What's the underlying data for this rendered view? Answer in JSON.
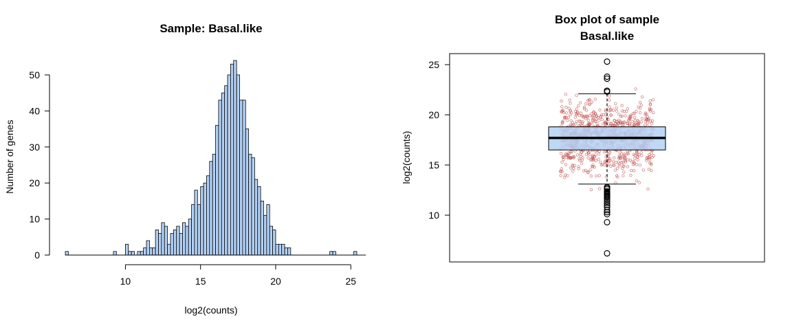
{
  "chart_data": [
    {
      "type": "bar",
      "title": "Sample:  Basal.like",
      "xlabel": "log2(counts)",
      "ylabel": "Number of genes",
      "xlim": [
        6,
        25.4
      ],
      "ylim": [
        0,
        54
      ],
      "x_ticks": [
        10,
        15,
        20,
        25
      ],
      "y_ticks": [
        0,
        10,
        20,
        30,
        40,
        50
      ],
      "bin_start": 6,
      "bin_width": 0.2,
      "counts": [
        1,
        0,
        0,
        0,
        0,
        0,
        0,
        0,
        0,
        0,
        0,
        0,
        0,
        0,
        0,
        0,
        1,
        0,
        0,
        0,
        3,
        1,
        1,
        0,
        1,
        1,
        2,
        4,
        2,
        2,
        7,
        6,
        9,
        8,
        3,
        6,
        7,
        8,
        6,
        9,
        8,
        10,
        14,
        18,
        14,
        19,
        20,
        22,
        26,
        28,
        36,
        43,
        45,
        47,
        50,
        53,
        54,
        50,
        43,
        43,
        35,
        28,
        27,
        21,
        19,
        15,
        11,
        14,
        8,
        7,
        3,
        3,
        3,
        2,
        2,
        0,
        0,
        0,
        0,
        0,
        0,
        0,
        0,
        0,
        0,
        0,
        0,
        0,
        0,
        0,
        0,
        0,
        0,
        0,
        0,
        0,
        0,
        0,
        0,
        0
      ],
      "tail_counts": [
        {
          "x": 23.6,
          "count": 1
        },
        {
          "x": 23.8,
          "count": 1
        },
        {
          "x": 25.2,
          "count": 1
        }
      ],
      "fill_color": "#b3d1f5",
      "edge_color": "#000000"
    },
    {
      "type": "box",
      "title": "Box plot of sample\nBasal.like",
      "title_lines": [
        "Box plot of sample",
        "Basal.like"
      ],
      "xlabel": "",
      "ylabel": "log2(counts)",
      "ylim": [
        6,
        26
      ],
      "y_ticks": [
        10,
        15,
        20,
        25
      ],
      "box": {
        "q1": 16.5,
        "median": 17.7,
        "q3": 18.8,
        "whisker_low": 13.1,
        "whisker_high": 22.1
      },
      "outliers": [
        25.3,
        23.8,
        23.6,
        22.4,
        22.3,
        12.8,
        12.7,
        12.6,
        12.4,
        12.3,
        12.2,
        12.1,
        12.0,
        11.9,
        11.8,
        11.6,
        11.4,
        11.2,
        11.0,
        10.8,
        10.5,
        10.3,
        10.1,
        9.3,
        6.2
      ],
      "jitter_points_count": 900,
      "box_color": "#b3d1f5",
      "point_color": "#c0504d"
    }
  ]
}
